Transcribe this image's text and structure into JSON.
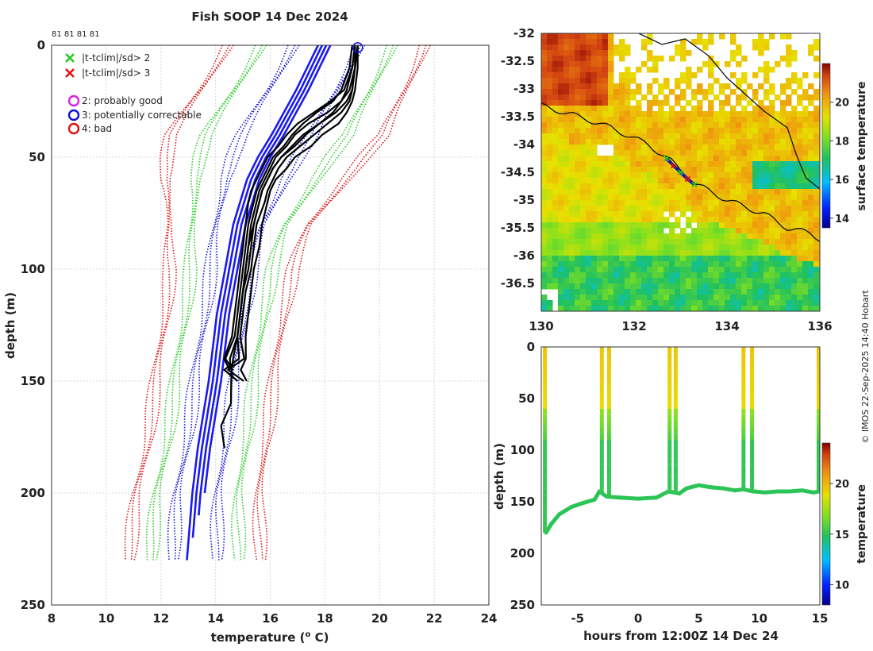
{
  "title": "Fish SOOP 14 Dec 2024",
  "credit": "© IMOS 22-Sep-2025 14:40 Hobart",
  "colors": {
    "profile": "#000000",
    "clim_sd1": "#1010dd",
    "clim_sd2": "#22cc22",
    "clim_sd3": "#dd1111",
    "mean": "#1a1aee"
  },
  "chart_data": [
    {
      "type": "line",
      "name": "profile",
      "title": "Fish SOOP 14 Dec 2024",
      "xlabel": "temperature (° C)",
      "ylabel": "depth (m)",
      "xlim": [
        8,
        24
      ],
      "ylim": [
        250,
        0
      ],
      "xticks": [
        8,
        10,
        12,
        14,
        16,
        18,
        20,
        22,
        24
      ],
      "yticks": [
        0,
        50,
        100,
        150,
        200,
        250
      ],
      "grid": true,
      "top_labels": "81 81 81 81",
      "legend": {
        "position": "top-left",
        "items": [
          {
            "marker": "x",
            "color": "#22cc22",
            "label": "|t-tclim|/sd>  2"
          },
          {
            "marker": "x",
            "color": "#dd1111",
            "label": "|t-tclim|/sd>  3"
          },
          {
            "marker": "o",
            "color": "#dd22dd",
            "label": "2: probably good"
          },
          {
            "marker": "o",
            "color": "#1010dd",
            "label": "3: potentially correctable"
          },
          {
            "marker": "o",
            "color": "#dd1111",
            "label": "4: bad"
          }
        ]
      },
      "climatology": {
        "depth": [
          0,
          20,
          40,
          50,
          60,
          80,
          100,
          120,
          150,
          180,
          200,
          230
        ],
        "mean": [
          18.0,
          17.2,
          16.3,
          15.8,
          15.4,
          14.9,
          14.6,
          14.3,
          14.0,
          13.6,
          13.4,
          13.2
        ],
        "sd": [
          1.2,
          1.25,
          1.3,
          1.2,
          1.1,
          0.85,
          0.75,
          0.72,
          0.72,
          0.72,
          0.75,
          0.8
        ],
        "dotted_offsets": [
          -3,
          -2,
          -1,
          1,
          2,
          3
        ],
        "mean_lines": 4
      },
      "profiles": {
        "depth": [
          0,
          10,
          20,
          25,
          30,
          35,
          40,
          45,
          50,
          55,
          60,
          65,
          70,
          80,
          90,
          100,
          110,
          120,
          130,
          140,
          145,
          150,
          160,
          170,
          180
        ],
        "variants": [
          [
            19.2,
            19.2,
            19.1,
            19.0,
            18.8,
            18.5,
            17.9,
            17.5,
            16.9,
            16.6,
            16.2,
            16.0,
            15.9,
            15.7,
            15.6,
            15.4,
            15.3,
            15.2,
            15.1,
            15.0,
            15.0,
            15.1
          ],
          [
            19.1,
            19.1,
            19.0,
            18.9,
            18.6,
            18.1,
            17.6,
            17.1,
            16.6,
            16.3,
            16.1,
            15.9,
            15.8,
            15.5,
            15.4,
            15.3,
            15.1,
            15.0,
            14.9,
            14.8,
            14.7,
            14.8
          ],
          [
            19.2,
            19.1,
            19.0,
            18.8,
            18.4,
            17.8,
            17.2,
            16.8,
            16.4,
            16.1,
            15.9,
            15.7,
            15.6,
            15.4,
            15.3,
            15.2,
            15.0,
            14.9,
            14.8,
            14.7,
            14.5,
            14.6
          ],
          [
            19.1,
            19.0,
            18.8,
            18.6,
            18.1,
            17.4,
            16.9,
            16.6,
            16.2,
            16.0,
            15.8,
            15.6,
            15.5,
            15.3,
            15.2,
            15.1,
            15.0,
            14.9,
            14.8,
            14.6,
            14.5
          ],
          [
            19.0,
            18.9,
            18.6,
            18.3,
            17.7,
            17.2,
            16.8,
            16.5,
            16.1,
            15.9,
            15.7,
            15.5,
            15.4,
            15.2,
            15.1,
            15.0,
            14.9,
            14.8,
            14.7,
            14.6,
            14.4
          ],
          [
            19.1,
            19.0,
            18.7,
            18.2,
            17.6,
            17.0,
            16.6,
            16.3,
            15.9,
            15.7,
            15.5,
            15.3,
            15.2,
            15.1,
            15.0,
            14.9,
            14.8,
            14.7,
            14.6,
            14.5,
            14.3
          ],
          [
            19.2,
            19.1,
            18.9,
            18.6,
            18.3,
            17.8,
            17.3,
            16.9,
            16.4,
            16.1,
            15.9,
            15.7,
            15.6,
            15.4,
            15.2,
            15.1,
            15.0,
            14.9,
            14.8,
            14.6,
            14.6,
            14.6,
            14.5,
            14.3,
            14.2
          ]
        ]
      },
      "flag_marker": {
        "temperature": 19.2,
        "depth": 1
      }
    },
    {
      "type": "heatmap",
      "name": "sst_map",
      "xlim": [
        130,
        136
      ],
      "ylim": [
        -37,
        -32
      ],
      "xticks": [
        130,
        132,
        134,
        136
      ],
      "yticks": [
        -32,
        -32.5,
        -33,
        -33.5,
        -34,
        -34.5,
        -35,
        -35.5,
        -36,
        -36.5
      ],
      "colorbar": {
        "label": "surface temperature",
        "ticks": [
          14,
          16,
          18,
          20
        ],
        "range": [
          13.5,
          22
        ]
      },
      "track": {
        "lon": [
          132.7,
          132.85,
          133.0,
          133.15,
          133.3
        ],
        "lat": [
          -34.25,
          -34.38,
          -34.5,
          -34.62,
          -34.72
        ]
      }
    },
    {
      "type": "scatter",
      "name": "depth_time",
      "xlabel": "hours from 12:00Z 14 Dec 24",
      "ylabel": "depth (m)",
      "xlim": [
        -8,
        15
      ],
      "ylim": [
        250,
        0
      ],
      "xticks": [
        -5,
        0,
        5,
        10,
        15
      ],
      "yticks": [
        0,
        50,
        100,
        150,
        200,
        250
      ],
      "colorbar": {
        "label": "temperature",
        "ticks": [
          10,
          15,
          20
        ],
        "range": [
          8,
          24
        ]
      },
      "casts": [
        {
          "t0": -7.7,
          "t1": 15.0,
          "bottom": [
            [
              -7.6,
              180
            ],
            [
              -7.2,
              172
            ],
            [
              -6.5,
              162
            ],
            [
              -5.5,
              155
            ],
            [
              -4.5,
              151
            ],
            [
              -3.6,
              148
            ],
            [
              -3.2,
              140
            ],
            [
              -2.6,
              145
            ],
            [
              -1.5,
              146
            ],
            [
              0.0,
              147
            ],
            [
              1.5,
              146
            ],
            [
              2.5,
              140
            ],
            [
              3.4,
              142
            ],
            [
              4.0,
              137
            ],
            [
              5.0,
              134
            ],
            [
              6.0,
              136
            ],
            [
              7.0,
              137
            ],
            [
              8.0,
              139
            ],
            [
              8.7,
              138
            ],
            [
              9.5,
              140
            ],
            [
              10.5,
              141
            ],
            [
              11.5,
              140
            ],
            [
              12.5,
              140
            ],
            [
              13.5,
              139
            ],
            [
              14.5,
              141
            ],
            [
              14.9,
              140
            ]
          ]
        },
        {
          "spikes": [
            -7.7,
            -3.0,
            -2.4,
            2.6,
            3.1,
            8.7,
            9.4,
            14.9
          ]
        }
      ]
    }
  ]
}
